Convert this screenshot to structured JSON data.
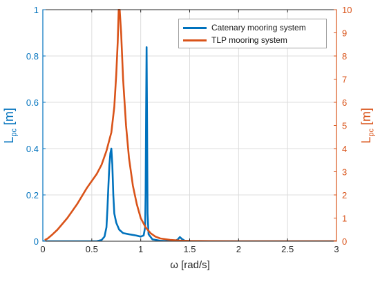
{
  "chart_data": {
    "type": "line",
    "xlabel": "ω  [rad/s]",
    "ylabel_left": {
      "main": "L",
      "sub": "pc",
      "unit": "[m]"
    },
    "ylabel_right": {
      "main": "L",
      "sub": "pc",
      "unit": "[m]"
    },
    "xlim": [
      0,
      3
    ],
    "ylim_left": [
      0,
      1
    ],
    "ylim_right": [
      0,
      10
    ],
    "xticks": [
      "0",
      "0.5",
      "1",
      "1.5",
      "2",
      "2.5",
      "3"
    ],
    "yticks_left": [
      "0",
      "0.2",
      "0.4",
      "0.6",
      "0.8",
      "1"
    ],
    "yticks_right": [
      "0",
      "1",
      "2",
      "3",
      "4",
      "5",
      "6",
      "7",
      "8",
      "9",
      "10"
    ],
    "grid": true,
    "legend_position": "top-right",
    "series": [
      {
        "name": "Catenary mooring system",
        "axis": "left",
        "color": "#0072BD",
        "points": [
          [
            0.0,
            0.0
          ],
          [
            0.55,
            0.0
          ],
          [
            0.6,
            0.005
          ],
          [
            0.63,
            0.02
          ],
          [
            0.65,
            0.06
          ],
          [
            0.66,
            0.14
          ],
          [
            0.67,
            0.24
          ],
          [
            0.68,
            0.33
          ],
          [
            0.69,
            0.38
          ],
          [
            0.7,
            0.4
          ],
          [
            0.71,
            0.33
          ],
          [
            0.72,
            0.2
          ],
          [
            0.73,
            0.12
          ],
          [
            0.75,
            0.08
          ],
          [
            0.78,
            0.05
          ],
          [
            0.82,
            0.035
          ],
          [
            0.88,
            0.03
          ],
          [
            0.95,
            0.025
          ],
          [
            1.0,
            0.02
          ],
          [
            1.03,
            0.025
          ],
          [
            1.045,
            0.06
          ],
          [
            1.05,
            0.2
          ],
          [
            1.055,
            0.55
          ],
          [
            1.06,
            0.838
          ],
          [
            1.065,
            0.5
          ],
          [
            1.07,
            0.12
          ],
          [
            1.08,
            0.03
          ],
          [
            1.12,
            0.008
          ],
          [
            1.2,
            0.002
          ],
          [
            1.3,
            0.0
          ],
          [
            1.35,
            0.001
          ],
          [
            1.38,
            0.008
          ],
          [
            1.4,
            0.018
          ],
          [
            1.42,
            0.01
          ],
          [
            1.45,
            0.002
          ],
          [
            1.55,
            0.0
          ],
          [
            3.0,
            0.0
          ]
        ]
      },
      {
        "name": "TLP mooring system",
        "axis": "right",
        "color": "#D95319",
        "points": [
          [
            0.02,
            0.05
          ],
          [
            0.05,
            0.12
          ],
          [
            0.1,
            0.3
          ],
          [
            0.15,
            0.5
          ],
          [
            0.2,
            0.75
          ],
          [
            0.25,
            1.0
          ],
          [
            0.3,
            1.3
          ],
          [
            0.35,
            1.6
          ],
          [
            0.4,
            1.95
          ],
          [
            0.45,
            2.3
          ],
          [
            0.5,
            2.6
          ],
          [
            0.55,
            2.9
          ],
          [
            0.6,
            3.3
          ],
          [
            0.65,
            3.9
          ],
          [
            0.7,
            4.7
          ],
          [
            0.73,
            5.8
          ],
          [
            0.75,
            7.2
          ],
          [
            0.765,
            8.6
          ],
          [
            0.775,
            10.0
          ],
          [
            0.785,
            10.0
          ],
          [
            0.8,
            9.0
          ],
          [
            0.82,
            7.0
          ],
          [
            0.85,
            5.0
          ],
          [
            0.88,
            3.6
          ],
          [
            0.92,
            2.4
          ],
          [
            0.96,
            1.6
          ],
          [
            1.0,
            1.0
          ],
          [
            1.05,
            0.6
          ],
          [
            1.1,
            0.35
          ],
          [
            1.15,
            0.2
          ],
          [
            1.2,
            0.12
          ],
          [
            1.3,
            0.06
          ],
          [
            1.4,
            0.03
          ],
          [
            1.5,
            0.015
          ],
          [
            1.7,
            0.005
          ],
          [
            2.0,
            0.0
          ],
          [
            3.0,
            0.0
          ]
        ]
      }
    ]
  },
  "colors": {
    "left_axis": "#0072BD",
    "right_axis": "#D95319",
    "grid": "#dcdcdc",
    "frame": "#262626"
  }
}
